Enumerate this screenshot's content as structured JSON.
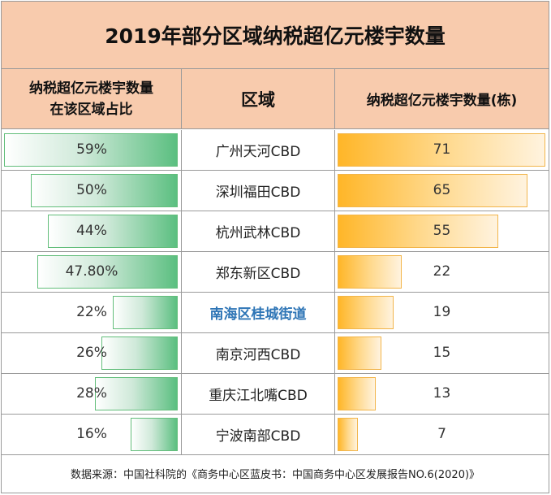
{
  "chart_data": {
    "type": "table",
    "title": "2019年部分区域纳税超亿元楼宇数量",
    "columns": [
      "纳税超亿元楼宇数量在该区域占比",
      "区域",
      "纳税超亿元楼宇数量(栋)"
    ],
    "column_header_lines": [
      "纳税超亿元楼宇数量",
      "在该区域占比"
    ],
    "rows": [
      {
        "share_label": "59%",
        "share": 59,
        "region": "广州天河CBD",
        "count": 71,
        "highlight": false
      },
      {
        "share_label": "50%",
        "share": 50,
        "region": "深圳福田CBD",
        "count": 65,
        "highlight": false
      },
      {
        "share_label": "44%",
        "share": 44,
        "region": "杭州武林CBD",
        "count": 55,
        "highlight": false
      },
      {
        "share_label": "47.80%",
        "share": 47.8,
        "region": "郑东新区CBD",
        "count": 22,
        "highlight": false
      },
      {
        "share_label": "22%",
        "share": 22,
        "region": "南海区桂城街道",
        "count": 19,
        "highlight": true
      },
      {
        "share_label": "26%",
        "share": 26,
        "region": "南京河西CBD",
        "count": 15,
        "highlight": false
      },
      {
        "share_label": "28%",
        "share": 28,
        "region": "重庆江北嘴CBD",
        "count": 13,
        "highlight": false
      },
      {
        "share_label": "16%",
        "share": 16,
        "region": "宁波南部CBD",
        "count": 7,
        "highlight": false
      }
    ],
    "source": "数据来源：中国社科院的《商务中心区蓝皮书：中国商务中心区发展报告NO.6(2020)》"
  },
  "colors": {
    "header_bg": "#f8cbad",
    "share_bar": "#63be7b",
    "count_bar": "#ffb628",
    "highlight_text": "#2e75b6"
  }
}
